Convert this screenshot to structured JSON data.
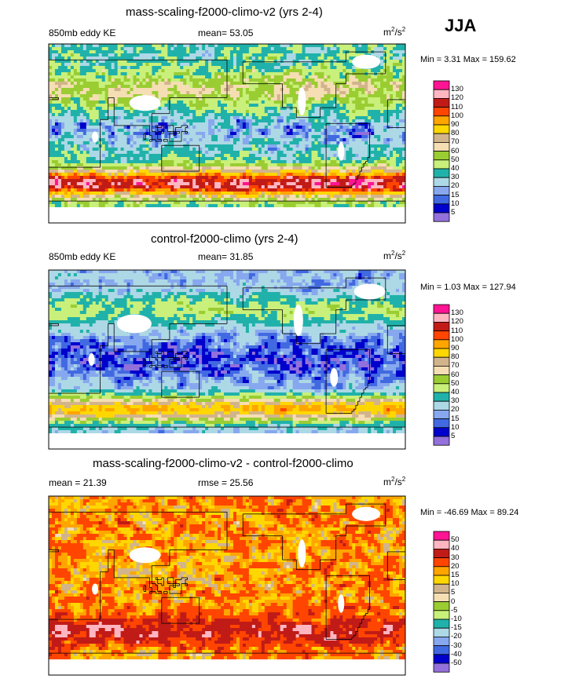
{
  "season": "JJA",
  "chart_data": [
    {
      "type": "heatmap",
      "title": "mass-scaling-f2000-climo-v2 (yrs 2-4)",
      "left_label": "850mb eddy KE",
      "center_label": "mean=  53.05",
      "units_base": "m",
      "units_exp1": "2",
      "units_mid": "/s",
      "units_exp2": "2",
      "min_max": "Min =   3.31 Max = 159.62",
      "mean": 53.05,
      "min": 3.31,
      "max": 159.62,
      "levels": [
        "130",
        "120",
        "110",
        "100",
        "90",
        "80",
        "70",
        "60",
        "50",
        "40",
        "30",
        "20",
        "15",
        "10",
        "5"
      ],
      "colors": [
        "#ff1493",
        "#ffb6c1",
        "#c11b17",
        "#ff4500",
        "#ffa500",
        "#ffd700",
        "#d2b48c",
        "#f5deb3",
        "#9acd32",
        "#c8f07a",
        "#20b2aa",
        "#add8e6",
        "#87a8ee",
        "#4169e1",
        "#0000cd",
        "#9370db"
      ]
    },
    {
      "type": "heatmap",
      "title": "control-f2000-climo (yrs 2-4)",
      "left_label": "850mb eddy KE",
      "center_label": "mean=  31.85",
      "units_base": "m",
      "units_exp1": "2",
      "units_mid": "/s",
      "units_exp2": "2",
      "min_max": "Min =   1.03 Max = 127.94",
      "mean": 31.85,
      "min": 1.03,
      "max": 127.94,
      "levels": [
        "130",
        "120",
        "110",
        "100",
        "90",
        "80",
        "70",
        "60",
        "50",
        "40",
        "30",
        "20",
        "15",
        "10",
        "5"
      ],
      "colors": [
        "#ff1493",
        "#ffb6c1",
        "#c11b17",
        "#ff4500",
        "#ffa500",
        "#ffd700",
        "#d2b48c",
        "#f5deb3",
        "#9acd32",
        "#c8f07a",
        "#20b2aa",
        "#add8e6",
        "#87a8ee",
        "#4169e1",
        "#0000cd",
        "#9370db"
      ]
    },
    {
      "type": "heatmap",
      "title": "mass-scaling-f2000-climo-v2 - control-f2000-climo",
      "left_label": "mean =  21.39",
      "center_label": "rmse =  25.56",
      "units_base": "m",
      "units_exp1": "2",
      "units_mid": "/s",
      "units_exp2": "2",
      "min_max": "Min = -46.69 Max =  89.24",
      "mean": 21.39,
      "rmse": 25.56,
      "min": -46.69,
      "max": 89.24,
      "levels": [
        "50",
        "40",
        "30",
        "20",
        "15",
        "10",
        "5",
        "0",
        "-5",
        "-10",
        "-15",
        "-20",
        "-30",
        "-40",
        "-50"
      ],
      "colors": [
        "#ff1493",
        "#ffb6c1",
        "#c11b17",
        "#ff4500",
        "#ffa500",
        "#ffd700",
        "#d2b48c",
        "#f5deb3",
        "#9acd32",
        "#c8f07a",
        "#20b2aa",
        "#add8e6",
        "#87a8ee",
        "#4169e1",
        "#0000cd",
        "#9370db"
      ]
    }
  ]
}
